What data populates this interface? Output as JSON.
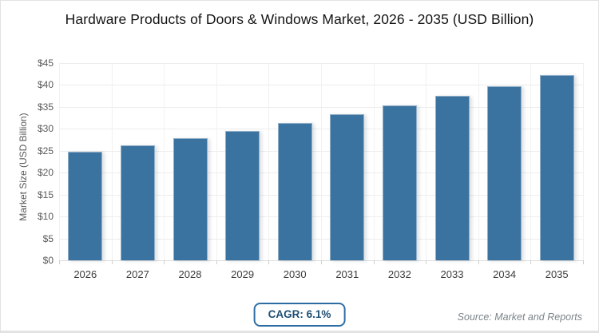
{
  "page": {
    "title": "Hardware Products of Doors & Windows Market, 2026 - 2035 (USD Billion)"
  },
  "chart_data": {
    "type": "bar",
    "title": "Hardware Products of Doors & Windows Market, 2026 - 2035 (USD Billion)",
    "categories": [
      "2026",
      "2027",
      "2028",
      "2029",
      "2030",
      "2031",
      "2032",
      "2033",
      "2034",
      "2035"
    ],
    "values": [
      24.8,
      26.3,
      27.9,
      29.6,
      31.4,
      33.4,
      35.4,
      37.5,
      39.8,
      42.3
    ],
    "xlabel": "",
    "ylabel": "Market Size (USD Billion)",
    "ylim": [
      0,
      45
    ],
    "ytick_step": 5,
    "ytick_prefix": "$",
    "grid": true,
    "legend_position": "none",
    "bar_color": "#3b73a0"
  },
  "footer": {
    "cagr_label": "CAGR: 6.1%",
    "source": "Source: Market and Reports"
  },
  "colors": {
    "bar": "#3b73a0",
    "bar_edge": "#93b0c8",
    "grid": "#ededed",
    "badge_border": "#2e6da4",
    "badge_text": "#1d4e73",
    "axis_text": "#595959",
    "source_text": "#7b848a"
  }
}
